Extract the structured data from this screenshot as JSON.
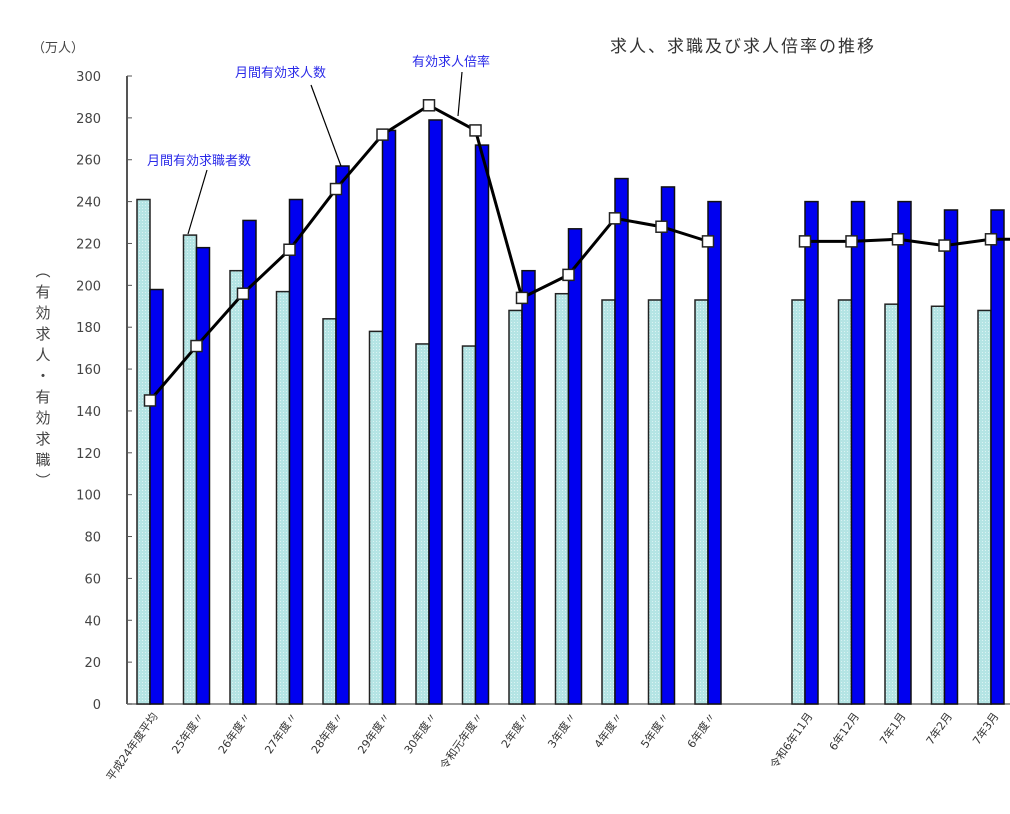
{
  "chart_data": {
    "type": "bar",
    "title": "求人、求職及び求人倍率の推移",
    "unit_label": "（万人）",
    "ylabel": "（有効求人・有効求職）",
    "ylabel_chars": [
      "︵",
      "有",
      "効",
      "求",
      "人",
      "・",
      "有",
      "効",
      "求",
      "職",
      "︶"
    ],
    "xlabel": "",
    "ylim": [
      0,
      300
    ],
    "yticks": [
      0,
      20,
      40,
      60,
      80,
      100,
      120,
      140,
      160,
      180,
      200,
      220,
      240,
      260,
      280,
      300
    ],
    "grid": false,
    "legend_position": "inline annotations",
    "categories": [
      "平成24年度平均",
      "25年度〃",
      "26年度〃",
      "27年度〃",
      "28年度〃",
      "29年度〃",
      "30年度〃",
      "令和元年度〃",
      "2年度〃",
      "3年度〃",
      "4年度〃",
      "5年度〃",
      "6年度〃",
      "令和6年11月",
      "6年12月",
      "7年1月",
      "7年2月",
      "7年3月",
      "…"
    ],
    "series": [
      {
        "name": "月間有効求職者数",
        "type": "bar",
        "color": "#b4e4e4",
        "values": [
          241,
          224,
          207,
          197,
          184,
          178,
          172,
          171,
          188,
          196,
          193,
          193,
          193,
          193,
          193,
          191,
          190,
          188,
          null
        ]
      },
      {
        "name": "月間有効求人数",
        "type": "bar",
        "color": "#0000f0",
        "values": [
          198,
          218,
          231,
          241,
          257,
          274,
          279,
          267,
          207,
          227,
          251,
          247,
          240,
          240,
          240,
          240,
          236,
          236,
          null
        ]
      },
      {
        "name": "有効求人倍率",
        "type": "line",
        "color": "#000000",
        "note": "ratio ×100 plotted on same axis",
        "values": [
          145,
          171,
          196,
          217,
          246,
          272,
          286,
          274,
          194,
          205,
          232,
          228,
          221,
          221,
          221,
          222,
          219,
          222,
          222
        ]
      }
    ],
    "annotations": [
      {
        "text": "月間有効求職者数",
        "target_series": 0
      },
      {
        "text": "月間有効求人数",
        "target_series": 1
      },
      {
        "text": "有効求人倍率",
        "target_series": 2
      }
    ]
  }
}
